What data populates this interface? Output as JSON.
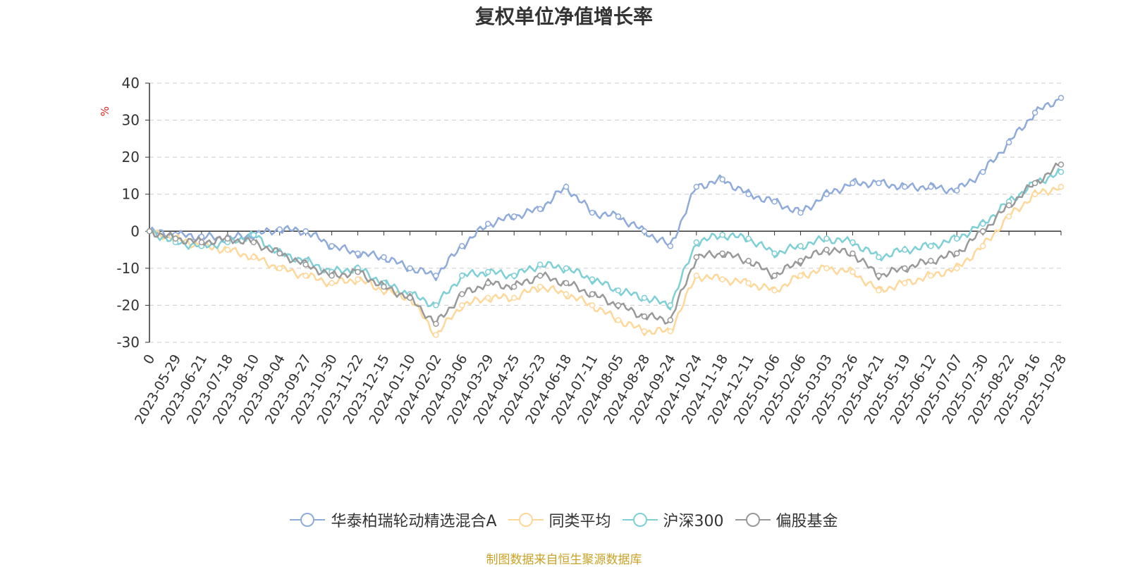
{
  "chart_data": {
    "type": "line",
    "title": "复权单位净值增长率",
    "ylabel": "%",
    "xlabel": "",
    "ylim": [
      -30,
      40
    ],
    "yticks": [
      40,
      30,
      20,
      10,
      0,
      -10,
      -20,
      -30
    ],
    "grid": true,
    "legend_position": "bottom",
    "x": [
      "0",
      "2023-05-29",
      "2023-06-21",
      "2023-07-18",
      "2023-08-10",
      "2023-09-04",
      "2023-09-27",
      "2023-10-30",
      "2023-11-22",
      "2023-12-15",
      "2024-01-10",
      "2024-02-02",
      "2024-03-06",
      "2024-03-29",
      "2024-04-25",
      "2024-05-23",
      "2024-06-18",
      "2024-07-11",
      "2024-08-05",
      "2024-08-28",
      "2024-09-24",
      "2024-10-24",
      "2024-11-18",
      "2024-12-11",
      "2025-01-06",
      "2025-02-06",
      "2025-03-03",
      "2025-03-26",
      "2025-04-21",
      "2025-05-19",
      "2025-06-12",
      "2025-07-07",
      "2025-07-30",
      "2025-08-22",
      "2025-09-16",
      "2025-10-28"
    ],
    "series": [
      {
        "name": "华泰柏瑞轮动精选混合A",
        "color": "#8fabd9",
        "values": [
          0,
          -1,
          -1.5,
          -2,
          -1,
          0.5,
          0,
          -4,
          -6,
          -7,
          -10,
          -12,
          -4,
          2,
          4,
          6,
          12,
          5,
          4,
          0,
          -4,
          12,
          14,
          10,
          8,
          5,
          10,
          13,
          13,
          12,
          12,
          11,
          16,
          24,
          32,
          36
        ]
      },
      {
        "name": "同类平均",
        "color": "#fdd89a",
        "values": [
          0,
          -2,
          -4,
          -5,
          -7,
          -10,
          -12,
          -14,
          -13,
          -16,
          -18,
          -28,
          -20,
          -18,
          -18,
          -15,
          -17,
          -20,
          -24,
          -27,
          -27,
          -12,
          -13,
          -14,
          -16,
          -12,
          -10,
          -11,
          -16,
          -14,
          -12,
          -10,
          -4,
          4,
          10,
          12
        ]
      },
      {
        "name": "沪深300",
        "color": "#7fcfd6",
        "values": [
          0,
          -3,
          -4,
          -3,
          -1,
          -6,
          -8,
          -11,
          -10,
          -14,
          -17,
          -20,
          -12,
          -11,
          -12,
          -9,
          -10,
          -13,
          -16,
          -18,
          -20,
          -3,
          -1,
          -2,
          -6,
          -4,
          -2,
          -3,
          -7,
          -5,
          -4,
          -2,
          2,
          8,
          13,
          16
        ]
      },
      {
        "name": "偏股基金",
        "color": "#999999",
        "values": [
          0,
          -2,
          -3,
          -2,
          -3,
          -6,
          -9,
          -12,
          -11,
          -15,
          -18,
          -25,
          -17,
          -14,
          -15,
          -12,
          -14,
          -17,
          -20,
          -23,
          -24,
          -7,
          -6,
          -8,
          -12,
          -8,
          -5,
          -6,
          -12,
          -10,
          -8,
          -6,
          0,
          7,
          13,
          18
        ]
      }
    ]
  },
  "source_note": "制图数据来自恒生聚源数据库"
}
